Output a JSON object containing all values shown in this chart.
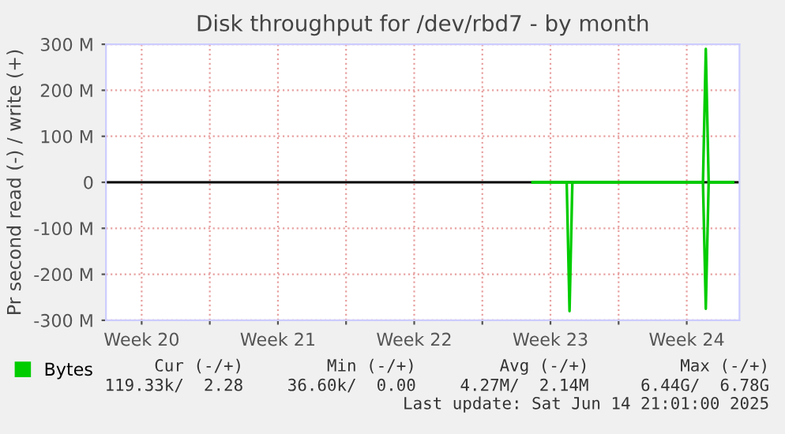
{
  "chart_data": {
    "type": "line",
    "title": "Disk throughput for /dev/rbd7 - by month",
    "ylabel": "Pr second read (-) / write (+)",
    "x": [
      "2025-06-04T14:00",
      "2025-06-13T08:00",
      "2025-06-13T11:30",
      "2025-06-13T15:00",
      "2025-06-14T21:00"
    ],
    "series": [
      {
        "name": "Bytes",
        "color": "#00cc00",
        "values": [
          0,
          0,
          290,
          0,
          0
        ]
      },
      {
        "color": "#00cc00",
        "x": [
          "2025-06-04T14:00",
          "2025-06-06T08:00",
          "2025-06-06T11:30",
          "2025-06-06T15:00",
          "2025-06-13T08:00",
          "2025-06-13T11:30",
          "2025-06-13T15:00",
          "2025-06-14T21:00"
        ],
        "values": [
          0,
          0,
          -280,
          0,
          0,
          -275,
          0,
          0
        ]
      }
    ],
    "xlim": [
      "2025-05-13T16:00",
      "2025-06-15T05:00"
    ],
    "xticks": [
      {
        "value": "2025-05-15T12:00",
        "label": "Week 20"
      },
      {
        "value": "2025-05-19",
        "label": null
      },
      {
        "value": "2025-05-22T12:00",
        "label": "Week 21"
      },
      {
        "value": "2025-05-26",
        "label": null
      },
      {
        "value": "2025-05-29T12:00",
        "label": "Week 22"
      },
      {
        "value": "2025-06-02",
        "label": null
      },
      {
        "value": "2025-06-05T12:00",
        "label": "Week 23"
      },
      {
        "value": "2025-06-09",
        "label": null
      },
      {
        "value": "2025-06-12T12:00",
        "label": "Week 24"
      }
    ],
    "ylim": [
      -300,
      300
    ],
    "yticks": [
      {
        "value": -300,
        "label": "-300 M"
      },
      {
        "value": -200,
        "label": "-200 M"
      },
      {
        "value": -100,
        "label": "-100 M"
      },
      0,
      {
        "value": 100,
        "label": "100 M"
      },
      {
        "value": 200,
        "label": "200 M"
      },
      {
        "value": 300,
        "label": "300 M"
      }
    ],
    "ref_lines": [
      {
        "axis": "y",
        "value": 0,
        "color": "#000000"
      }
    ],
    "grid": true,
    "legend": "bottom left",
    "marker": "none",
    "line_style": "solid",
    "annotations": [
      "Cur (-/+)",
      "Min (-/+)",
      "Avg (-/+)",
      "Max (-/+)",
      "119.33k/  2.28",
      "36.60k/  0.00",
      "4.27M/  2.14M",
      "6.44G/  6.78G",
      "Last update: Sat Jun 14 21:01:00 2025"
    ]
  }
}
